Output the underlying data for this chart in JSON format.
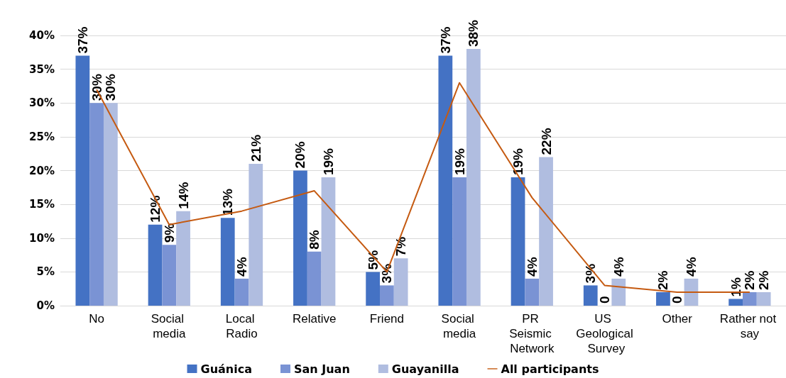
{
  "chart_data": {
    "type": "bar",
    "categories": [
      "No",
      "Social media",
      "Local Radio",
      "Relative",
      "Friend",
      "Social media",
      "PR Seismic Network",
      "US Geological Survey",
      "Other",
      "Rather not say"
    ],
    "series": [
      {
        "name": "Guánica",
        "color": "#4472c4",
        "values": [
          37,
          12,
          13,
          20,
          5,
          37,
          19,
          3,
          2,
          1
        ],
        "value_labels": [
          "37%",
          "12%",
          "13%",
          "20%",
          "5%",
          "37%",
          "19%",
          "3%",
          "2%",
          "1%"
        ]
      },
      {
        "name": "San Juan",
        "color": "#7a93d4",
        "values": [
          30,
          9,
          4,
          8,
          3,
          19,
          4,
          0,
          0,
          2
        ],
        "value_labels": [
          "30%",
          "9%",
          "4%",
          "8%",
          "3%",
          "19%",
          "4%",
          "0",
          "0",
          "2%"
        ]
      },
      {
        "name": "Guayanilla",
        "color": "#b0bde0",
        "values": [
          30,
          14,
          21,
          19,
          7,
          38,
          22,
          4,
          4,
          2
        ],
        "value_labels": [
          "30%",
          "14%",
          "21%",
          "19%",
          "7%",
          "38%",
          "22%",
          "4%",
          "4%",
          "2%"
        ]
      },
      {
        "name": "All participants",
        "type": "line",
        "color": "#c55a11",
        "marker": "none",
        "values": [
          32,
          12,
          14,
          17,
          5,
          33,
          16,
          3,
          2,
          2
        ]
      }
    ],
    "ylim": [
      0,
      40
    ],
    "yticks": [
      {
        "value": 0,
        "label": "0%"
      },
      {
        "value": 5,
        "label": "5%"
      },
      {
        "value": 10,
        "label": "10%"
      },
      {
        "value": 15,
        "label": "15%"
      },
      {
        "value": 20,
        "label": "20%"
      },
      {
        "value": 25,
        "label": "25%"
      },
      {
        "value": 30,
        "label": "30%"
      },
      {
        "value": 35,
        "label": "35%"
      },
      {
        "value": 40,
        "label": "40%"
      }
    ],
    "grid": "y",
    "legend": "bottom"
  }
}
